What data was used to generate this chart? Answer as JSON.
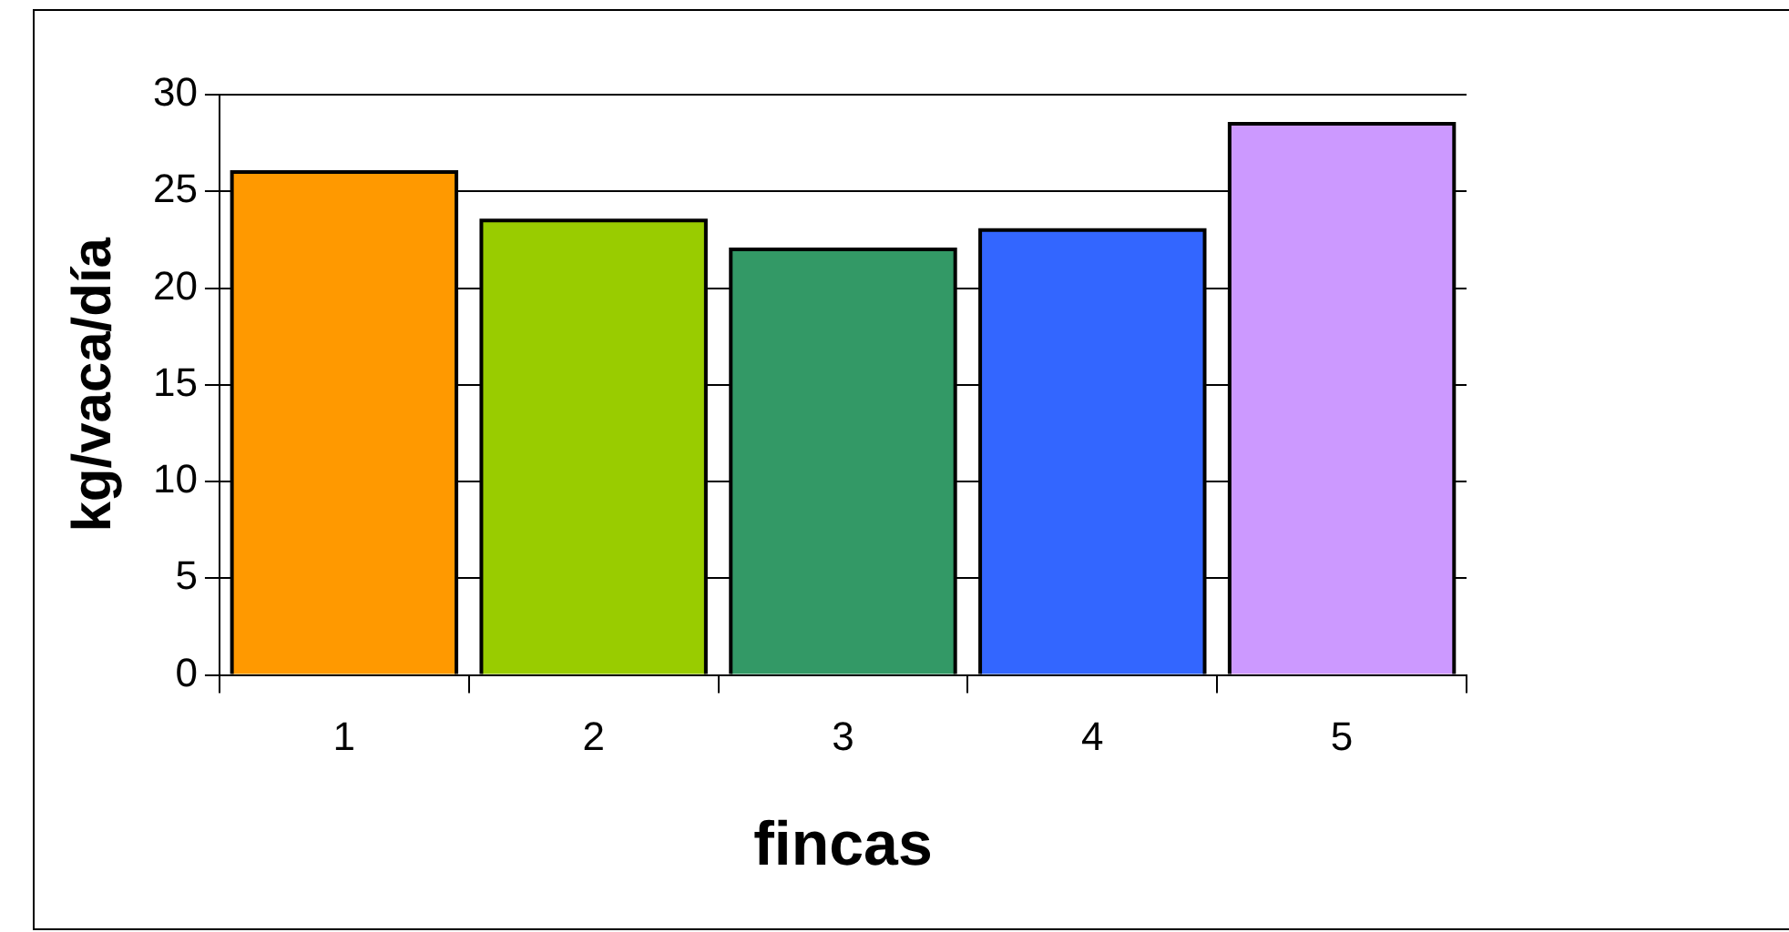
{
  "chart_data": {
    "type": "bar",
    "categories": [
      "1",
      "2",
      "3",
      "4",
      "5"
    ],
    "values": [
      26,
      23.5,
      22,
      23,
      28.5
    ],
    "colors": [
      "#ff9900",
      "#99cc00",
      "#339966",
      "#3366ff",
      "#cc99ff"
    ],
    "xlabel": "fincas",
    "ylabel": "kg/vaca/día",
    "ylim": [
      0,
      30
    ],
    "yticks": [
      0,
      5,
      10,
      15,
      20,
      25,
      30
    ],
    "grid": "y"
  }
}
